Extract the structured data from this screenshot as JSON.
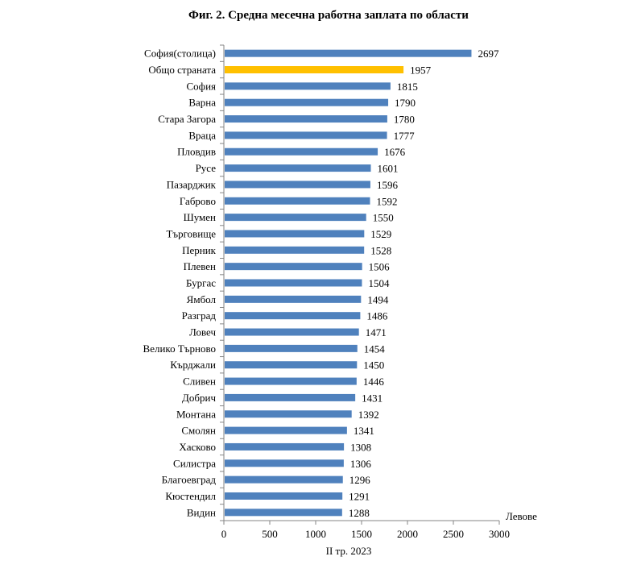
{
  "chart_data": {
    "type": "bar",
    "orientation": "horizontal",
    "title": "Фиг. 2. Средна месечна работна заплата по области",
    "xlabel": "II тр. 2023",
    "unit_label": "Левове",
    "xlim": [
      0,
      3000
    ],
    "xticks": [
      0,
      500,
      1000,
      1500,
      2000,
      2500,
      3000
    ],
    "grid": false,
    "categories": [
      "София(столица)",
      "Общо страната",
      "София",
      "Варна",
      "Стара Загора",
      "Враца",
      "Пловдив",
      "Русе",
      "Пазарджик",
      "Габрово",
      "Шумен",
      "Търговище",
      "Перник",
      "Плевен",
      "Бургас",
      "Ямбол",
      "Разград",
      "Ловеч",
      "Велико Търново",
      "Кърджали",
      "Сливен",
      "Добрич",
      "Монтана",
      "Смолян",
      "Хасково",
      "Силистра",
      "Благоевград",
      "Кюстендил",
      "Видин"
    ],
    "values": [
      2697,
      1957,
      1815,
      1790,
      1780,
      1777,
      1676,
      1601,
      1596,
      1592,
      1550,
      1529,
      1528,
      1506,
      1504,
      1494,
      1486,
      1471,
      1454,
      1450,
      1446,
      1431,
      1392,
      1341,
      1308,
      1306,
      1296,
      1291,
      1288
    ],
    "colors": {
      "default": "#4F81BD",
      "highlight": "#FFC000"
    },
    "highlight_category": "Общо страната"
  }
}
